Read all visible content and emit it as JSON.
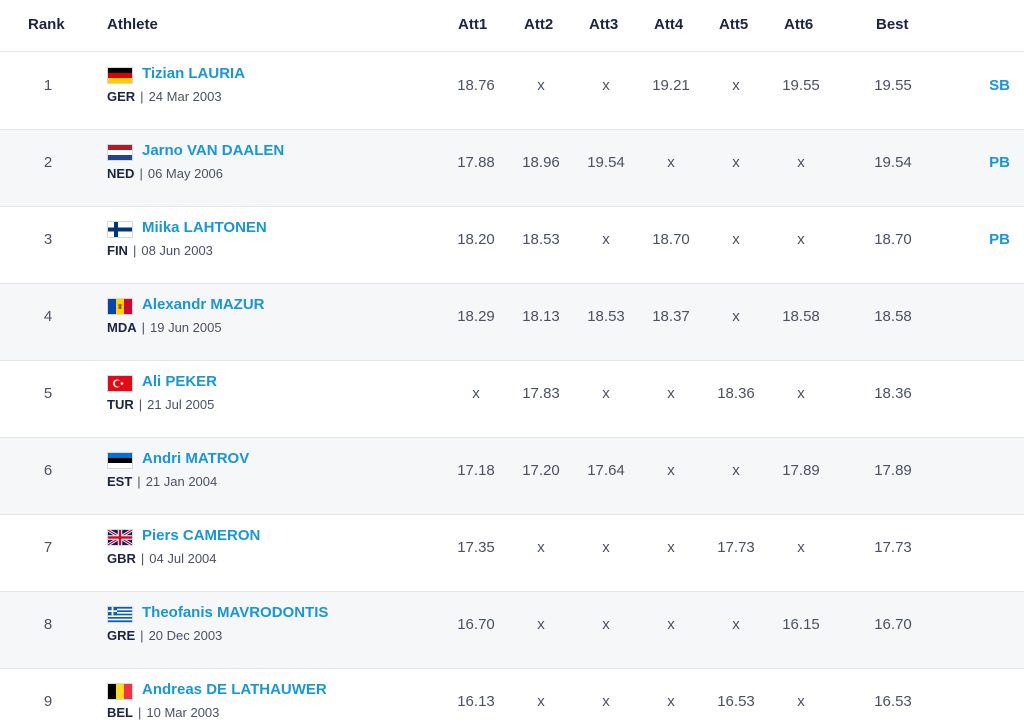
{
  "table": {
    "headers": {
      "rank": "Rank",
      "athlete": "Athlete",
      "att1": "Att1",
      "att2": "Att2",
      "att3": "Att3",
      "att4": "Att4",
      "att5": "Att5",
      "att6": "Att6",
      "best": "Best"
    },
    "rows": [
      {
        "rank": "1",
        "name": "Tizian LAURIA",
        "country": "GER",
        "dob": "24 Mar 2003",
        "flag": "flag-germany-icon",
        "attempts": [
          "18.76",
          "x",
          "x",
          "19.21",
          "x",
          "19.55"
        ],
        "best": "19.55",
        "mark": "SB"
      },
      {
        "rank": "2",
        "name": "Jarno VAN DAALEN",
        "country": "NED",
        "dob": "06 May 2006",
        "flag": "flag-netherlands-icon",
        "attempts": [
          "17.88",
          "18.96",
          "19.54",
          "x",
          "x",
          "x"
        ],
        "best": "19.54",
        "mark": "PB"
      },
      {
        "rank": "3",
        "name": "Miika LAHTONEN",
        "country": "FIN",
        "dob": "08 Jun 2003",
        "flag": "flag-finland-icon",
        "attempts": [
          "18.20",
          "18.53",
          "x",
          "18.70",
          "x",
          "x"
        ],
        "best": "18.70",
        "mark": "PB"
      },
      {
        "rank": "4",
        "name": "Alexandr MAZUR",
        "country": "MDA",
        "dob": "19 Jun 2005",
        "flag": "flag-moldova-icon",
        "attempts": [
          "18.29",
          "18.13",
          "18.53",
          "18.37",
          "x",
          "18.58"
        ],
        "best": "18.58",
        "mark": ""
      },
      {
        "rank": "5",
        "name": "Ali PEKER",
        "country": "TUR",
        "dob": "21 Jul 2005",
        "flag": "flag-turkey-icon",
        "attempts": [
          "x",
          "17.83",
          "x",
          "x",
          "18.36",
          "x"
        ],
        "best": "18.36",
        "mark": ""
      },
      {
        "rank": "6",
        "name": "Andri MATROV",
        "country": "EST",
        "dob": "21 Jan 2004",
        "flag": "flag-estonia-icon",
        "attempts": [
          "17.18",
          "17.20",
          "17.64",
          "x",
          "x",
          "17.89"
        ],
        "best": "17.89",
        "mark": ""
      },
      {
        "rank": "7",
        "name": "Piers CAMERON",
        "country": "GBR",
        "dob": "04 Jul 2004",
        "flag": "flag-uk-icon",
        "attempts": [
          "17.35",
          "x",
          "x",
          "x",
          "17.73",
          "x"
        ],
        "best": "17.73",
        "mark": ""
      },
      {
        "rank": "8",
        "name": "Theofanis MAVRODONTIS",
        "country": "GRE",
        "dob": "20 Dec 2003",
        "flag": "flag-greece-icon",
        "attempts": [
          "16.70",
          "x",
          "x",
          "x",
          "x",
          "16.15"
        ],
        "best": "16.70",
        "mark": ""
      },
      {
        "rank": "9",
        "name": "Andreas DE LATHAUWER",
        "country": "BEL",
        "dob": "10 Mar 2003",
        "flag": "flag-belgium-icon",
        "attempts": [
          "16.13",
          "x",
          "x",
          "x",
          "16.53",
          "x"
        ],
        "best": "16.53",
        "mark": ""
      }
    ]
  }
}
